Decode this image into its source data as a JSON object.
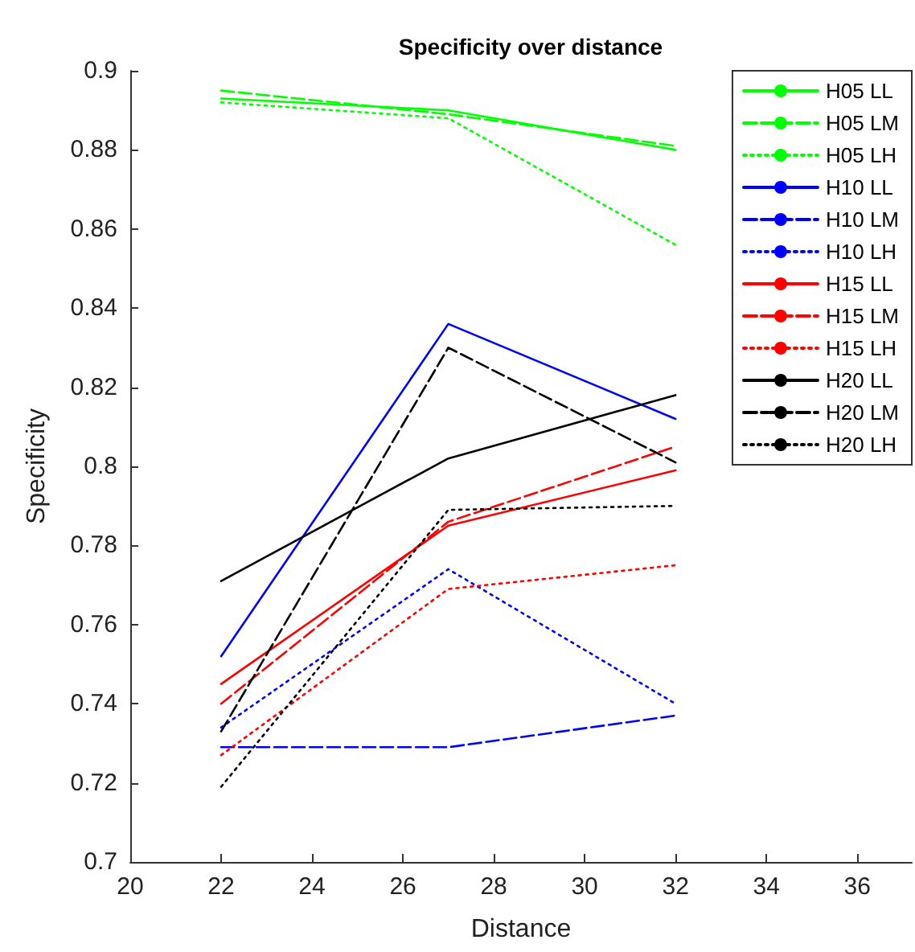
{
  "chart_data": {
    "type": "line",
    "title": "Specificity over distance",
    "xlabel": "Distance",
    "ylabel": "Specificity",
    "x": [
      22,
      27,
      32
    ],
    "xlim": [
      20,
      37.2
    ],
    "xticks": [
      20,
      22,
      24,
      26,
      28,
      30,
      32,
      34,
      36
    ],
    "ylim": [
      0.7,
      0.9
    ],
    "yticks": [
      0.7,
      0.72,
      0.74,
      0.76,
      0.78,
      0.8,
      0.82,
      0.84,
      0.86,
      0.88,
      0.9
    ],
    "grid": false,
    "legend": "top right",
    "marker": "none",
    "series": [
      {
        "name": "H05 LL",
        "color": "#00ff00",
        "line_style": "solid",
        "values": [
          0.893,
          0.89,
          0.88
        ]
      },
      {
        "name": "H05 LM",
        "color": "#00ff00",
        "line_style": "dashed",
        "values": [
          0.895,
          0.889,
          0.881
        ]
      },
      {
        "name": "H05 LH",
        "color": "#00ff00",
        "line_style": "dotted",
        "values": [
          0.892,
          0.888,
          0.856
        ]
      },
      {
        "name": "H10 LL",
        "color": "#0000ff",
        "line_style": "solid",
        "values": [
          0.752,
          0.836,
          0.812
        ]
      },
      {
        "name": "H10 LM",
        "color": "#0000ff",
        "line_style": "dashed",
        "values": [
          0.729,
          0.729,
          0.737
        ]
      },
      {
        "name": "H10 LH",
        "color": "#0000ff",
        "line_style": "dotted",
        "values": [
          0.734,
          0.774,
          0.74
        ]
      },
      {
        "name": "H15 LL",
        "color": "#ff0000",
        "line_style": "solid",
        "values": [
          0.745,
          0.785,
          0.799
        ]
      },
      {
        "name": "H15 LM",
        "color": "#ff0000",
        "line_style": "dashed",
        "values": [
          0.74,
          0.786,
          0.805
        ]
      },
      {
        "name": "H15 LH",
        "color": "#ff0000",
        "line_style": "dotted",
        "values": [
          0.727,
          0.769,
          0.775
        ]
      },
      {
        "name": "H20 LL",
        "color": "#000000",
        "line_style": "solid",
        "values": [
          0.771,
          0.802,
          0.818
        ]
      },
      {
        "name": "H20 LM",
        "color": "#000000",
        "line_style": "dashed",
        "values": [
          0.733,
          0.83,
          0.801
        ]
      },
      {
        "name": "H20 LH",
        "color": "#000000",
        "line_style": "dotted",
        "values": [
          0.719,
          0.789,
          0.79
        ]
      }
    ]
  }
}
